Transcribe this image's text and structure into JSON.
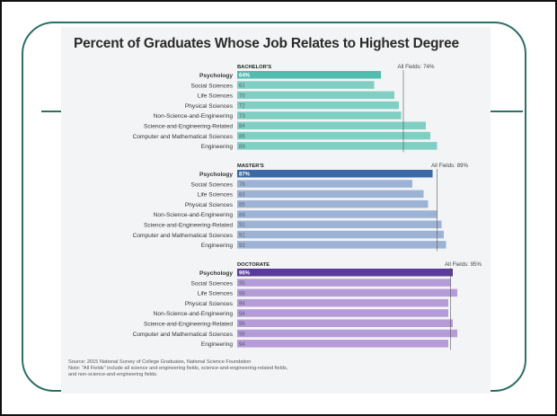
{
  "chart_data": {
    "type": "bar",
    "title": "Percent of Graduates Whose Job Relates to Highest Degree",
    "categories": [
      "Psychology",
      "Social Sciences",
      "Life Sciences",
      "Physical Sciences",
      "Non-Science-and-Engineering",
      "Science-and-Engineering-Related",
      "Computer and Mathematical Sciences",
      "Engineering"
    ],
    "series": [
      {
        "name": "BACHELOR'S",
        "values": [
          64,
          61,
          70,
          72,
          73,
          84,
          86,
          89
        ],
        "all_fields_label": "All Fields: 74%",
        "all_fields_value": 74,
        "color": "#7fcfc2",
        "highlight_color": "#52bcae"
      },
      {
        "name": "MASTER'S",
        "values": [
          87,
          78,
          83,
          85,
          89,
          91,
          92,
          93
        ],
        "all_fields_label": "All Fields: 89%",
        "all_fields_value": 89,
        "color": "#9db3d6",
        "highlight_color": "#3a69a6"
      },
      {
        "name": "DOCTORATE",
        "values": [
          96,
          95,
          98,
          94,
          94,
          96,
          98,
          94
        ],
        "all_fields_label": "All Fields: 95%",
        "all_fields_value": 95,
        "color": "#b69bd9",
        "highlight_color": "#5b3b99"
      }
    ],
    "value_labels": [
      [
        "64%",
        "61",
        "70",
        "72",
        "73",
        "84",
        "86",
        "89"
      ],
      [
        "87%",
        "78",
        "83",
        "85",
        "89",
        "91",
        "92",
        "93"
      ],
      [
        "96%",
        "95",
        "98",
        "94",
        "94",
        "96",
        "98",
        "94"
      ]
    ],
    "xlim": [
      0,
      100
    ],
    "grid": false,
    "legend": "none"
  },
  "footnote": {
    "source": "Source: 2015 National Survey of College Graduates, National Science Foundation",
    "note_line1": "Note: \"All Fields\" include all science and engineering fields, science-and-engineering-related fields,",
    "note_line2": "and non-science-and-engineering fields."
  },
  "colors": {
    "frame": "#2e6f66",
    "reference_line": "#555555",
    "category_text": "#333333"
  }
}
